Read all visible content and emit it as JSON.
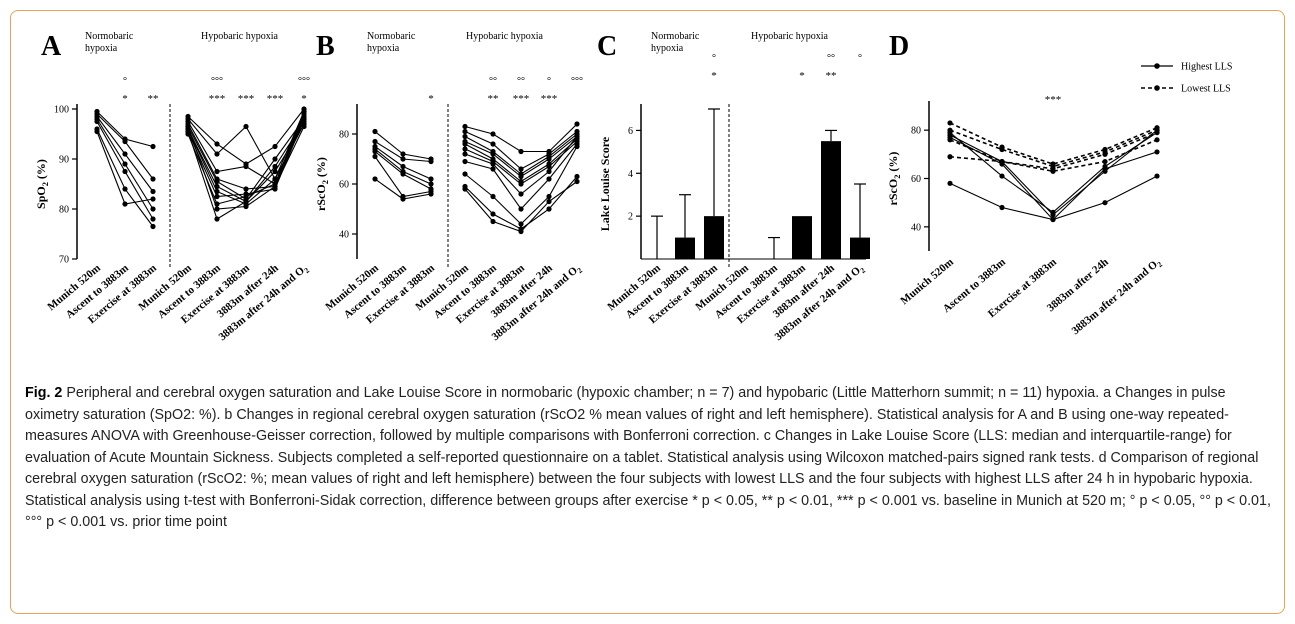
{
  "figure": {
    "caption_label": "Fig. 2",
    "caption_text": "Peripheral and cerebral oxygen saturation and Lake Louise Score in normobaric (hypoxic chamber; n = 7) and hypobaric (Little Matterhorn summit; n = 11) hypoxia. a Changes in pulse oximetry saturation (SpO2: %). b Changes in regional cerebral oxygen saturation (rScO2 % mean values of right and left hemisphere). Statistical analysis for A and B using one-way repeated-measures ANOVA with Greenhouse-Geisser correction, followed by multiple comparisons with Bonferroni correction. c Changes in Lake Louise Score (LLS: median and interquartile-range) for evaluation of Acute Mountain Sickness. Subjects completed a self-reported questionnaire on a tablet. Statistical analysis using Wilcoxon matched-pairs signed rank tests. d Comparison of regional cerebral oxygen saturation (rScO2: %; mean values of right and left hemisphere) between the four subjects with lowest LLS and the four subjects with highest LLS after 24 h in hypobaric hypoxia. Statistical analysis using t-test with Bonferroni-Sidak correction, difference between groups after exercise * p < 0.05, ** p < 0.01, *** p < 0.001 vs. baseline in Munich at 520 m; ° p < 0.05, °° p < 0.01, °°° p < 0.001 vs. prior time point"
  },
  "chart_data": [
    {
      "panel": "A",
      "type": "line",
      "ylabel": "SpO2 (%)",
      "ylim": [
        70,
        100
      ],
      "yticks": [
        70,
        80,
        90,
        100
      ],
      "groups": [
        {
          "label": "Normobaric hypoxia",
          "categories": [
            "Munich 520m",
            "Ascent to 3883m",
            "Exercise at 3883m"
          ],
          "annotations": {
            "star": [
              "",
              "*",
              "**"
            ],
            "circle": [
              "",
              "°",
              ""
            ]
          },
          "series": [
            [
              99.5,
              94,
              92.5
            ],
            [
              99,
              93.5,
              86
            ],
            [
              98.5,
              91,
              83.5
            ],
            [
              98,
              89,
              80
            ],
            [
              97.5,
              87.5,
              78
            ],
            [
              96,
              84,
              76.5
            ],
            [
              95.5,
              81,
              82
            ]
          ]
        },
        {
          "label": "Hypobaric hypoxia",
          "categories": [
            "Munich 520m",
            "Ascent to 3883m",
            "Exercise at 3883m",
            "3883m after 24h",
            "3883m after 24h and O2"
          ],
          "annotations": {
            "star": [
              "",
              "***",
              "***",
              "***",
              "*"
            ],
            "circle": [
              "",
              "°°°",
              "",
              "",
              "°°°"
            ]
          },
          "series": [
            [
              98.5,
              93,
              89,
              92.5,
              100
            ],
            [
              98,
              91,
              96.5,
              86,
              99.5
            ],
            [
              97.5,
              87.5,
              88.5,
              85,
              99
            ],
            [
              97,
              86,
              84,
              84.5,
              98.5
            ],
            [
              96.5,
              85.5,
              82,
              90,
              98
            ],
            [
              96,
              84.5,
              81.5,
              88.5,
              97.5
            ],
            [
              96,
              83.5,
              81,
              86,
              97
            ],
            [
              95.5,
              82.5,
              83,
              84,
              98
            ],
            [
              95,
              81,
              82.5,
              85,
              99.5
            ],
            [
              95.5,
              78,
              81.5,
              87.5,
              97
            ],
            [
              96.5,
              80,
              80.5,
              84.5,
              96.5
            ]
          ]
        }
      ]
    },
    {
      "panel": "B",
      "type": "line",
      "ylabel": "rScO2 (%)",
      "ylim": [
        30,
        90
      ],
      "yticks": [
        40,
        60,
        80
      ],
      "groups": [
        {
          "label": "Normobaric hypoxia",
          "categories": [
            "Munich 520m",
            "Ascent to 3883m",
            "Exercise at 3883m"
          ],
          "annotations": {
            "star": [
              "",
              "",
              "*"
            ],
            "circle": [
              "",
              "",
              ""
            ]
          },
          "series": [
            [
              81,
              72,
              70
            ],
            [
              77,
              70,
              69
            ],
            [
              75,
              67,
              62
            ],
            [
              74,
              65,
              60
            ],
            [
              73,
              64,
              58
            ],
            [
              71,
              55,
              57
            ],
            [
              62,
              54,
              56
            ]
          ]
        },
        {
          "label": "Hypobaric hypoxia",
          "categories": [
            "Munich 520m",
            "Ascent to 3883m",
            "Exercise at 3883m",
            "3883m after 24h",
            "3883m after 24h and O2"
          ],
          "annotations": {
            "star": [
              "",
              "**",
              "***",
              "***",
              ""
            ],
            "circle": [
              "",
              "°°",
              "°°",
              "°",
              "°°°"
            ]
          },
          "series": [
            [
              83,
              80,
              73,
              73,
              84
            ],
            [
              81,
              76,
              66,
              72,
              81
            ],
            [
              79,
              73,
              64,
              71,
              80
            ],
            [
              77,
              72,
              63,
              70,
              79
            ],
            [
              76,
              70,
              61,
              68,
              78
            ],
            [
              74,
              69,
              60,
              67,
              77
            ],
            [
              72,
              68,
              56,
              65,
              79
            ],
            [
              69,
              66,
              50,
              62,
              76
            ],
            [
              64,
              55,
              44,
              55,
              75
            ],
            [
              59,
              48,
              42,
              50,
              63
            ],
            [
              58,
              45,
              41,
              53,
              61
            ]
          ]
        }
      ]
    },
    {
      "panel": "C",
      "type": "bar",
      "ylabel": "Lake Louise Score",
      "ylim": [
        0,
        7
      ],
      "yticks": [
        2,
        4,
        6
      ],
      "groups": [
        {
          "label": "Normobaric hypoxia",
          "categories": [
            "Munich 520m",
            "Ascent to 3883m",
            "Exercise at 3883m"
          ],
          "annotations": {
            "star": [
              "",
              "",
              "*"
            ],
            "circle": [
              "",
              "",
              "°"
            ]
          },
          "values": [
            0,
            1,
            2
          ],
          "upper": [
            2,
            3,
            7
          ]
        },
        {
          "label": "Hypobaric hypoxia",
          "categories": [
            "Munich 520m",
            "Ascent to 3883m",
            "Exercise at 3883m",
            "3883m after 24h",
            "3883m after 24h and O2"
          ],
          "annotations": {
            "star": [
              "",
              "",
              "*",
              "**",
              ""
            ],
            "circle": [
              "",
              "",
              "",
              "°°",
              "°"
            ]
          },
          "values": [
            0,
            0,
            2,
            5.5,
            1
          ],
          "upper": [
            0,
            1,
            2,
            6,
            3.5
          ]
        }
      ]
    },
    {
      "panel": "D",
      "type": "line",
      "ylabel": "rScO2 (%)",
      "ylim": [
        30,
        90
      ],
      "yticks": [
        40,
        60,
        80
      ],
      "categories": [
        "Munich 520m",
        "Ascent to 3883m",
        "Exercise at 3883m",
        "3883m after 24h",
        "3883m after 24h and O2"
      ],
      "annotations": {
        "star": [
          "",
          "",
          "***",
          "",
          ""
        ]
      },
      "legend": [
        "Highest LLS",
        "Lowest LLS"
      ],
      "series": [
        {
          "name": "Highest LLS",
          "values": [
            79,
            61,
            46,
            65,
            79
          ]
        },
        {
          "name": "Highest LLS",
          "values": [
            77,
            66,
            43,
            64,
            71
          ]
        },
        {
          "name": "Highest LLS",
          "values": [
            78,
            67,
            45,
            63,
            80
          ]
        },
        {
          "name": "Highest LLS",
          "values": [
            58,
            48,
            43,
            50,
            61
          ]
        },
        {
          "name": "Lowest LLS",
          "values": [
            83,
            73,
            66,
            72,
            81
          ]
        },
        {
          "name": "Lowest LLS",
          "values": [
            80,
            72,
            65,
            71,
            80
          ]
        },
        {
          "name": "Lowest LLS",
          "values": [
            76,
            67,
            64,
            70,
            79
          ]
        },
        {
          "name": "Lowest LLS",
          "values": [
            69,
            67,
            63,
            67,
            76
          ]
        }
      ]
    }
  ]
}
